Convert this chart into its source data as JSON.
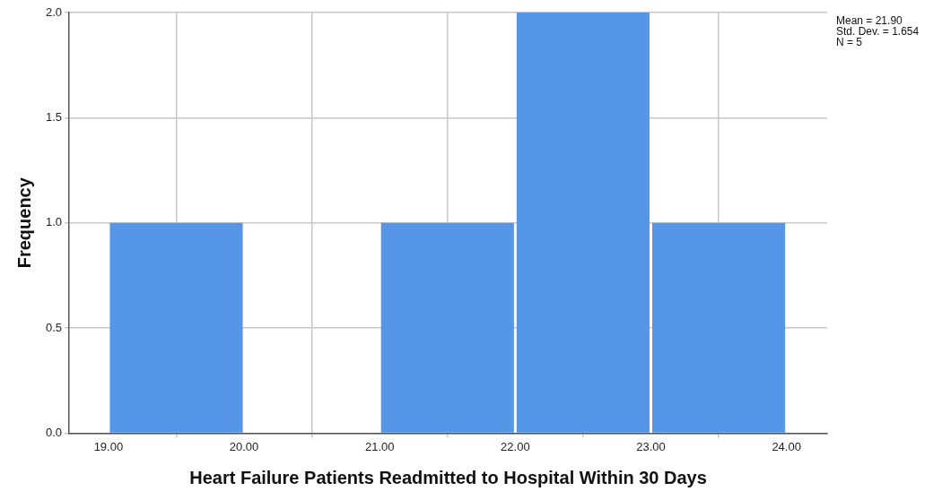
{
  "chart_data": {
    "type": "histogram",
    "bins": [
      19,
      20,
      21,
      22,
      23,
      24
    ],
    "values": [
      1,
      0,
      1,
      2,
      1
    ],
    "color": "#5596e6",
    "xlabel": "Heart Failure Patients Readmitted to Hospital Within 30 Days",
    "ylabel": "Frequency",
    "xlim": [
      18.71,
      24.3
    ],
    "xticks": [
      {
        "value": 19,
        "label": "19.00"
      },
      {
        "value": 20,
        "label": "20.00"
      },
      {
        "value": 21,
        "label": "21.00"
      },
      {
        "value": 22,
        "label": "22.00"
      },
      {
        "value": 23,
        "label": "23.00"
      },
      {
        "value": 24,
        "label": "24.00"
      }
    ],
    "ylim": [
      0,
      2
    ],
    "yticks": [
      {
        "value": 0,
        "label": "0.0"
      },
      {
        "value": 0.5,
        "label": "0.5"
      },
      {
        "value": 1,
        "label": "1.0"
      },
      {
        "value": 1.5,
        "label": "1.5"
      },
      {
        "value": 2,
        "label": "2.0"
      }
    ],
    "grid": true,
    "annotations": [
      "Mean = 21.90",
      "Std. Dev. = 1.654",
      "N = 5"
    ]
  }
}
